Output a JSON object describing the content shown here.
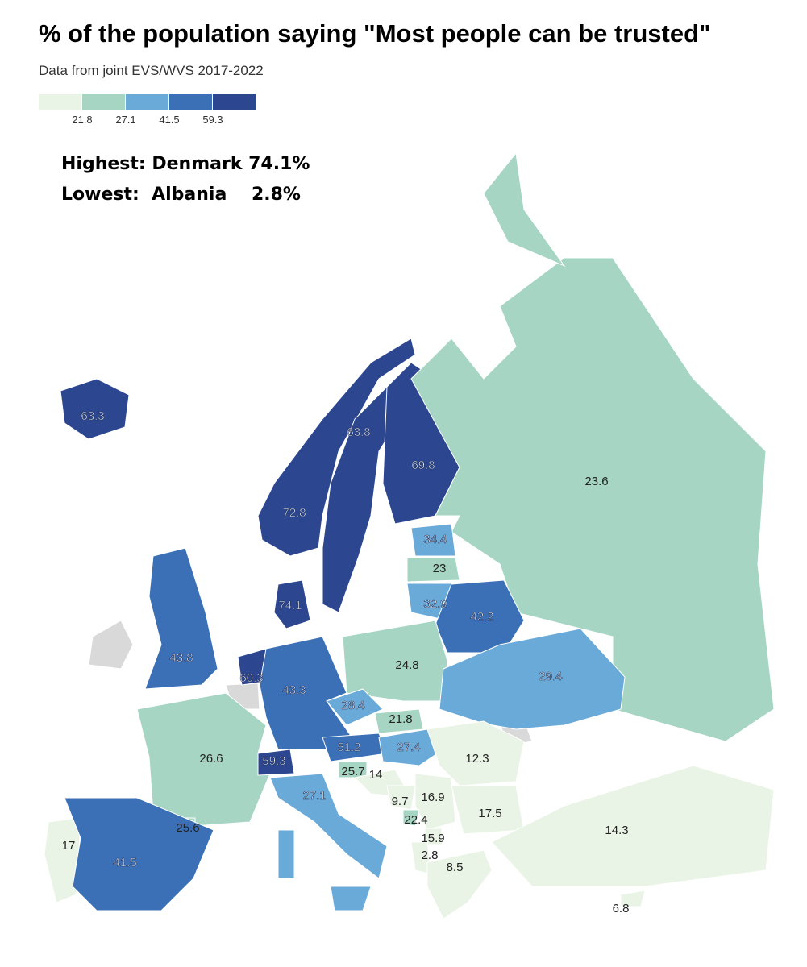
{
  "header": {
    "title": "% of the population saying \"Most people can be trusted\"",
    "subtitle": "Data from joint EVS/WVS 2017-2022"
  },
  "legend": {
    "breaks": [
      21.8,
      27.1,
      41.5,
      59.3
    ],
    "colors": [
      "#eaf4e6",
      "#a6d5c3",
      "#6aaad8",
      "#3b70b6",
      "#2c4690"
    ]
  },
  "highlights": [
    "Highest: Denmark 74.1%",
    "Lowest:  Albania    2.8%"
  ],
  "regions": {
    "values": [
      63.3,
      72.8,
      63.8,
      69.8,
      23.6,
      34.4,
      23,
      32.9,
      42.2,
      74.1,
      43.8,
      60.3,
      43.3,
      24.8,
      29.4,
      28.4,
      21.8,
      26.6,
      59.3,
      51.2,
      27.4,
      12.3,
      25.7,
      14,
      27.1,
      9.7,
      16.9,
      22.4,
      17.5,
      15.9,
      2.8,
      8.5,
      25.6,
      17,
      41.5,
      14.3,
      6.8
    ]
  }
}
